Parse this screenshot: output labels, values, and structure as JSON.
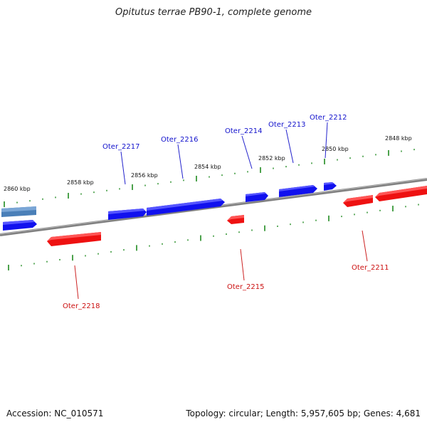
{
  "header": {
    "title": "Opitutus terrae PB90-1, complete genome"
  },
  "footer": {
    "accession": "Accession: NC_010571",
    "summary": "Topology: circular; Length: 5,957,605 bp; Genes: 4,681"
  },
  "colors": {
    "forward_gene": "#1111ee",
    "forward_gene_alt": "#4a7fb8",
    "reverse_gene": "#ee1111",
    "tick": "#1f8a1f",
    "backbone": "#808080",
    "forward_label": "#1111cc",
    "reverse_label": "#cc1111"
  },
  "scale_labels": [
    "2860 kbp",
    "2858 kbp",
    "2856 kbp",
    "2854 kbp",
    "2852 kbp",
    "2850 kbp",
    "2848 kbp"
  ],
  "genes": [
    {
      "id": "Oter_2218",
      "strand": "reverse"
    },
    {
      "id": "Oter_2217",
      "strand": "forward"
    },
    {
      "id": "Oter_2216",
      "strand": "forward"
    },
    {
      "id": "Oter_2215",
      "strand": "reverse"
    },
    {
      "id": "Oter_2214",
      "strand": "forward"
    },
    {
      "id": "Oter_2213",
      "strand": "forward"
    },
    {
      "id": "Oter_2212",
      "strand": "forward"
    },
    {
      "id": "Oter_2211",
      "strand": "reverse"
    }
  ]
}
